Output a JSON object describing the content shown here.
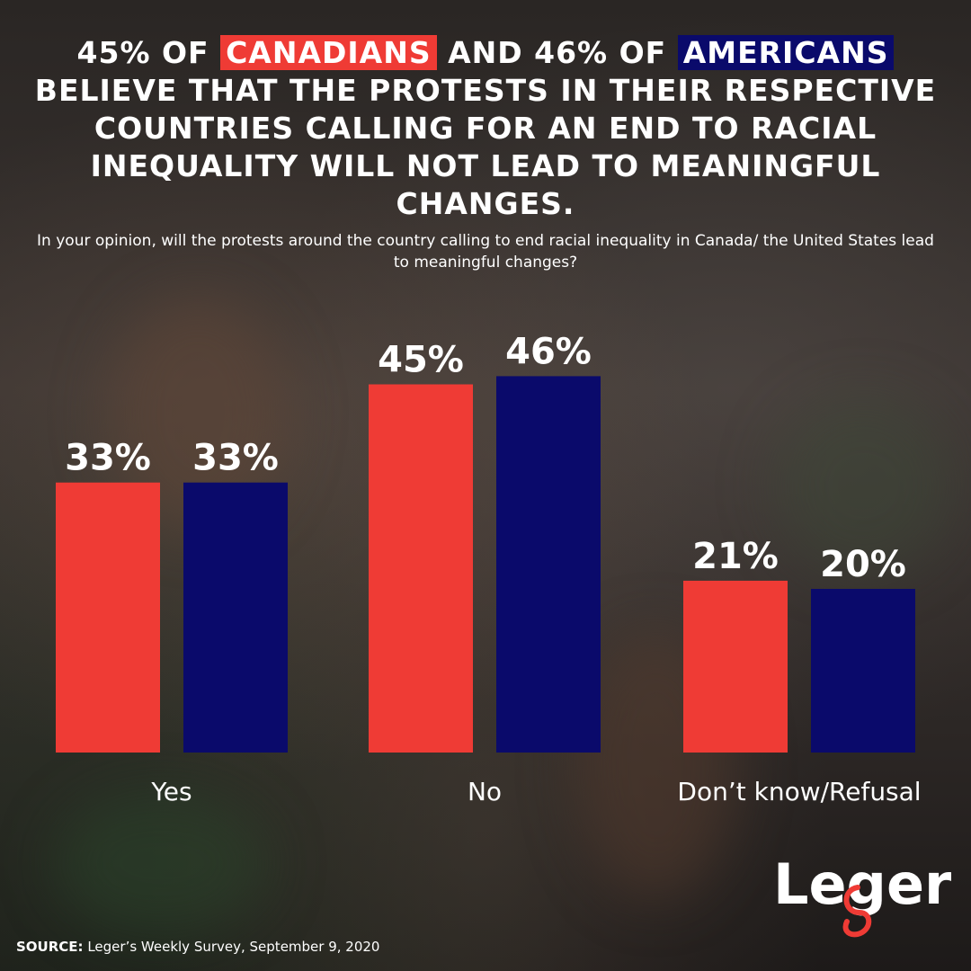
{
  "headline": {
    "part1": "45% OF ",
    "canadians": "CANADIANS",
    "part2": " AND 46% OF ",
    "americans": "AMERICANS",
    "part3": " BELIEVE THAT THE PROTESTS IN THEIR RESPECTIVE COUNTRIES CALLING FOR AN END TO RACIAL INEQUALITY WILL NOT LEAD TO MEANINGFUL CHANGES."
  },
  "question": "In your opinion, will the protests around the country calling to end racial inequality in Canada/ the United States lead to meaningful changes?",
  "source": {
    "label": "SOURCE:",
    "text": "Leger’s Weekly Survey, September 9, 2020"
  },
  "logo": {
    "text": "Leger"
  },
  "colors": {
    "canada": "#ef3b35",
    "usa": "#0a0a6b"
  },
  "chart_data": {
    "type": "bar",
    "categories": [
      "Yes",
      "No",
      "Don’t know/Refusal"
    ],
    "series": [
      {
        "key": "canada",
        "values": [
          33,
          45,
          21
        ]
      },
      {
        "key": "usa",
        "values": [
          33,
          46,
          20
        ]
      }
    ],
    "value_labels": [
      [
        "33%",
        "45%",
        "21%"
      ],
      [
        "33%",
        "46%",
        "20%"
      ]
    ],
    "ylim": [
      0,
      50
    ],
    "grid": false,
    "legend": "none"
  }
}
